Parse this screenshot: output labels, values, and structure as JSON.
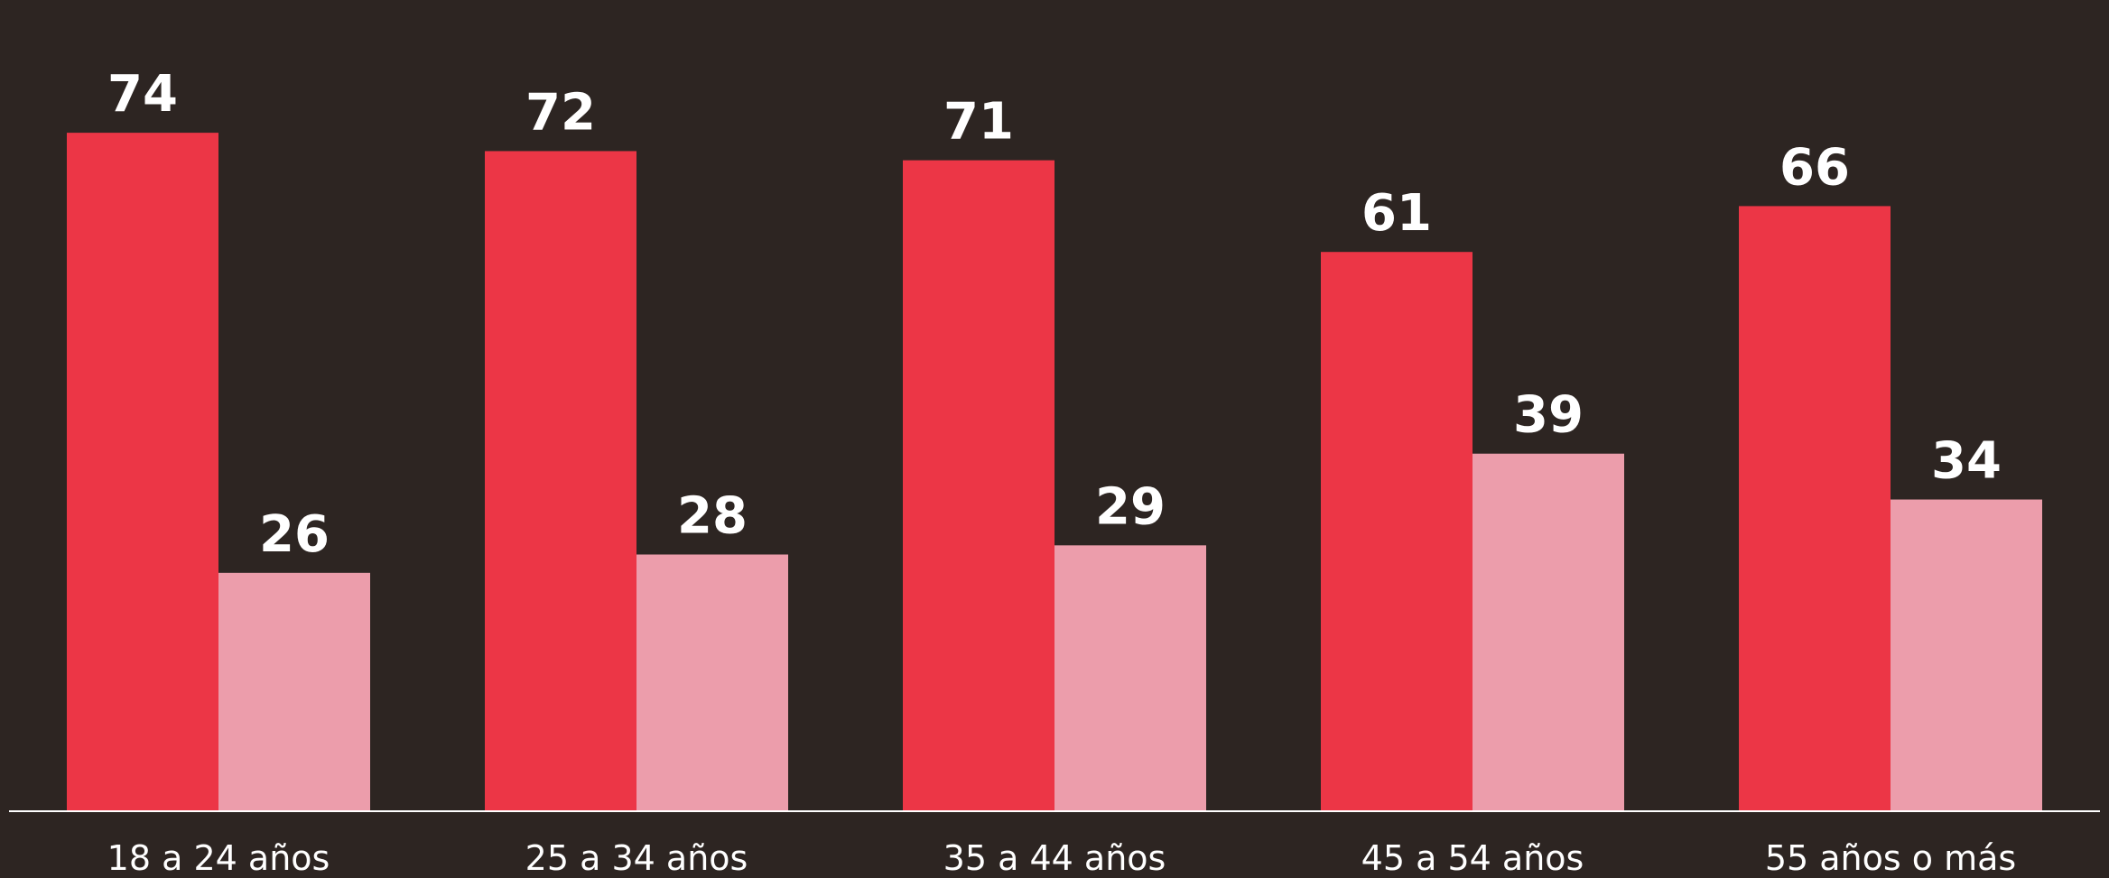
{
  "chart_data": {
    "type": "bar",
    "categories": [
      "18 a 24 años",
      "25 a 34 años",
      "35 a 44 años",
      "45 a 54 años",
      "55 años o más"
    ],
    "series": [
      {
        "values": [
          74,
          72,
          71,
          61,
          66
        ]
      },
      {
        "values": [
          26,
          28,
          29,
          39,
          34
        ]
      }
    ],
    "ylim": [
      0,
      81
    ],
    "grid": false,
    "colors": {
      "background": "#2d2522",
      "series_1": "#ec3646",
      "series_2": "#ec9dab",
      "axis": "#ffffff",
      "text": "#ffffff"
    }
  }
}
